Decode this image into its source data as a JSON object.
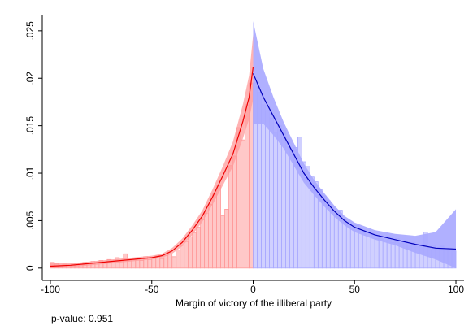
{
  "chart_data": {
    "type": "histogram",
    "xlabel": "Margin of victory of the illiberal party",
    "annotation": "p-value: 0.951",
    "xlim": [
      -104,
      104
    ],
    "ylim": [
      -0.0013,
      0.0267
    ],
    "xticks": [
      -100,
      -50,
      0,
      50,
      100
    ],
    "yticks": [
      0,
      {
        "value": 0.005,
        "label": ".005"
      },
      {
        "value": 0.01,
        "label": ".01"
      },
      {
        "value": 0.015,
        "label": ".015"
      },
      {
        "value": 0.02,
        "label": ".02"
      },
      {
        "value": 0.025,
        "label": ".025"
      }
    ],
    "histograms": [
      {
        "color": "#ff9a9a",
        "bins": [
          -100,
          -98,
          -96,
          -94,
          -92,
          -90,
          -88,
          -86,
          -84,
          -82,
          -80,
          -78,
          -76,
          -74,
          -72,
          -70,
          -68,
          -66,
          -64,
          -62,
          -60,
          -58,
          -56,
          -54,
          -52,
          -50,
          -48,
          -46,
          -44,
          -42,
          -40,
          -38,
          -36,
          -34,
          -32,
          -30,
          -28,
          -26,
          -24,
          -22,
          -20,
          -18,
          -16,
          -14,
          -12,
          -10,
          -8,
          -6,
          -4,
          -2,
          0
        ],
        "values": [
          0.0006,
          0.0005,
          0.0003,
          0.0004,
          0.0003,
          0.0004,
          0.0005,
          0.0004,
          0.0006,
          0.0005,
          0.0007,
          0.0005,
          0.0008,
          0.0006,
          0.0009,
          0.0007,
          0.0011,
          0.0007,
          0.0015,
          0.0008,
          0.0009,
          0.001,
          0.0008,
          0.0012,
          0.0009,
          0.0011,
          0.0013,
          0.001,
          0.0013,
          0.0015,
          0.0012,
          0.0019,
          0.0024,
          0.0028,
          0.0033,
          0.0037,
          0.0043,
          0.0051,
          0.0058,
          0.0067,
          0.0078,
          0.0087,
          0.0055,
          0.0062,
          0.0108,
          0.0118,
          0.0148,
          0.0135,
          0.0172,
          0.0195
        ]
      },
      {
        "color": "#a9a9ff",
        "bins": [
          0,
          2,
          4,
          6,
          8,
          10,
          12,
          14,
          16,
          18,
          20,
          22,
          24,
          26,
          28,
          30,
          32,
          34,
          36,
          38,
          40,
          42,
          44,
          46,
          48,
          50,
          52,
          54,
          56,
          58,
          60,
          62,
          64,
          66,
          68,
          70,
          72,
          74,
          76,
          78,
          80,
          82,
          84,
          86,
          88,
          90,
          92,
          94,
          96,
          98,
          100
        ],
        "values": [
          0.0195,
          0.0185,
          0.0172,
          0.0166,
          0.0158,
          0.0143,
          0.015,
          0.0145,
          0.0132,
          0.0125,
          0.0127,
          0.0138,
          0.0112,
          0.0107,
          0.0096,
          0.0091,
          0.0083,
          0.0076,
          0.0071,
          0.0064,
          0.0056,
          0.0061,
          0.0051,
          0.0046,
          0.0041,
          0.0045,
          0.004,
          0.0037,
          0.0033,
          0.0036,
          0.0031,
          0.0034,
          0.0029,
          0.003,
          0.0027,
          0.0031,
          0.0026,
          0.0028,
          0.0024,
          0.0027,
          0.0023,
          0.0025,
          0.0038,
          0.0022,
          0.0024,
          0.002,
          0.0023,
          0.0019,
          0.0021,
          0.0018
        ]
      }
    ],
    "fits": [
      {
        "color": "#ee0000",
        "band_color": "#ff8080",
        "x": [
          -100,
          -90,
          -80,
          -70,
          -60,
          -50,
          -45,
          -40,
          -35,
          -30,
          -25,
          -20,
          -15,
          -10,
          -5,
          -2,
          0
        ],
        "values": [
          0.0002,
          0.0003,
          0.0005,
          0.0007,
          0.0009,
          0.0011,
          0.0013,
          0.0018,
          0.0027,
          0.004,
          0.0055,
          0.0075,
          0.0097,
          0.012,
          0.0155,
          0.018,
          0.0212
        ],
        "lower": [
          0.0,
          0.0001,
          0.0003,
          0.0005,
          0.0007,
          0.0009,
          0.0011,
          0.0015,
          0.0023,
          0.0035,
          0.0049,
          0.0067,
          0.0087,
          0.0107,
          0.0137,
          0.0157,
          0.0178
        ],
        "upper": [
          0.0005,
          0.0005,
          0.0007,
          0.0009,
          0.0011,
          0.0013,
          0.0015,
          0.0021,
          0.0031,
          0.0045,
          0.0061,
          0.0083,
          0.0107,
          0.0133,
          0.0173,
          0.0203,
          0.0246
        ]
      },
      {
        "color": "#0000bb",
        "band_color": "#7c7cff",
        "x": [
          0,
          5,
          10,
          15,
          20,
          25,
          30,
          35,
          40,
          45,
          50,
          60,
          70,
          80,
          90,
          100
        ],
        "values": [
          0.0205,
          0.018,
          0.016,
          0.014,
          0.012,
          0.01,
          0.0085,
          0.0072,
          0.006,
          0.005,
          0.0043,
          0.0035,
          0.003,
          0.0025,
          0.0021,
          0.002
        ],
        "lower": [
          0.0152,
          0.0152,
          0.014,
          0.0126,
          0.0108,
          0.009,
          0.0077,
          0.0065,
          0.0054,
          0.0045,
          0.0038,
          0.003,
          0.0024,
          0.0016,
          0.0009,
          0.0
        ],
        "upper": [
          0.026,
          0.021,
          0.018,
          0.0154,
          0.0132,
          0.011,
          0.0093,
          0.0079,
          0.0066,
          0.0055,
          0.0048,
          0.004,
          0.0036,
          0.0034,
          0.0038,
          0.0062
        ]
      }
    ]
  }
}
